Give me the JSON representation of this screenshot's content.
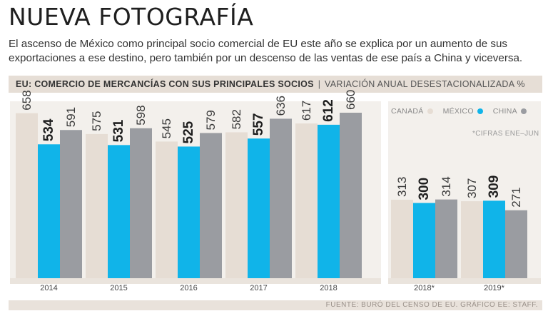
{
  "title": "NUEVA FOTOGRAFÍA",
  "subtitle": "El ascenso de México como principal socio comercial de EU este año se explica por un aumento de sus exportaciones a ese destino, pero también por un descenso de las ventas de ese país a China y viceversa.",
  "header": {
    "main_label": "EU: COMERCIO DE MERCANCÍAS CON SUS PRINCIPALES SOCIOS",
    "separator": "|",
    "sub_label": "VARIACIÓN ANUAL DESESTACIONALIZADA %"
  },
  "legend": [
    {
      "label": "CANADÁ",
      "color": "#e6ddd4"
    },
    {
      "label": "MÉXICO",
      "color": "#10b4e9"
    },
    {
      "label": "CHINA",
      "color": "#9a9ca1"
    }
  ],
  "note": "*CIFRAS ENE–JUN",
  "footer": "FUENTE: BURÓ DEL CENSO DE EU. GRÁFICO EE: STAFF.",
  "chart_data": [
    {
      "type": "bar",
      "categories": [
        "2014",
        "2015",
        "2016",
        "2017",
        "2018"
      ],
      "series": [
        {
          "name": "CANADÁ",
          "values": [
            658,
            575,
            545,
            582,
            617
          ]
        },
        {
          "name": "MÉXICO",
          "values": [
            534,
            531,
            525,
            557,
            612
          ]
        },
        {
          "name": "CHINA",
          "values": [
            591,
            598,
            579,
            636,
            660
          ]
        }
      ],
      "ylim": [
        0,
        700
      ]
    },
    {
      "type": "bar",
      "categories": [
        "2018*",
        "2019*"
      ],
      "series": [
        {
          "name": "CANADÁ",
          "values": [
            313,
            307
          ]
        },
        {
          "name": "MÉXICO",
          "values": [
            300,
            309
          ]
        },
        {
          "name": "CHINA",
          "values": [
            314,
            271
          ]
        }
      ],
      "ylim": [
        0,
        700
      ]
    }
  ]
}
